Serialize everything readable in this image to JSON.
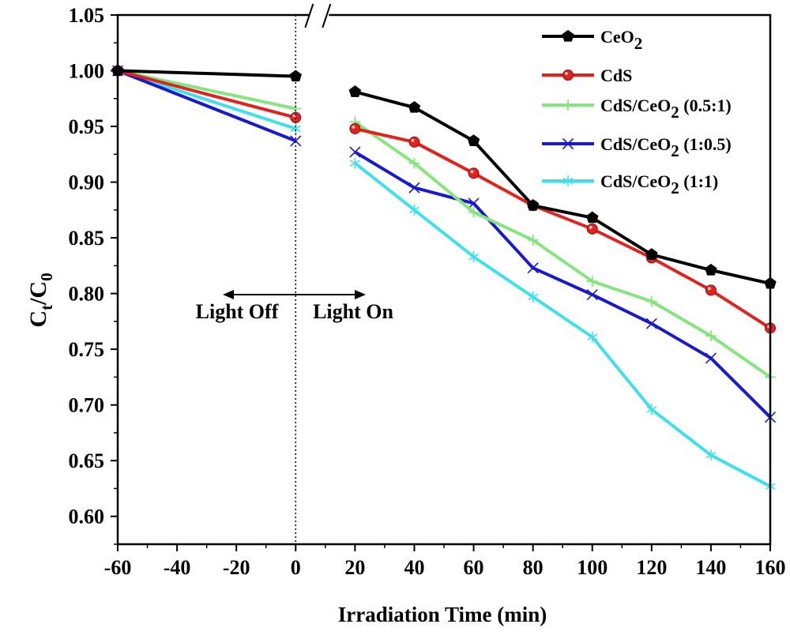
{
  "chart_data": {
    "type": "line",
    "xlabel": "Irradiation Time (min)",
    "ylabel": {
      "base": "C",
      "sub": "t",
      "sep": "/",
      "base2": "C",
      "sub2": "0"
    },
    "xlim": [
      -60,
      160
    ],
    "ylim": [
      0.575,
      1.05
    ],
    "xticks": [
      -60,
      -40,
      -20,
      0,
      20,
      40,
      60,
      80,
      100,
      120,
      140,
      160
    ],
    "yticks": [
      "0.60",
      "0.65",
      "0.70",
      "0.75",
      "0.80",
      "0.85",
      "0.90",
      "0.95",
      "1.00",
      "1.05"
    ],
    "axis_break_at_x": 8,
    "annotations": {
      "left": "Light Off",
      "right": "Light On"
    },
    "series": [
      {
        "name": "CeO2",
        "label_main": "CeO",
        "label_sub": "2",
        "label_tail": "",
        "color": "#000000",
        "marker": "pentagon",
        "segments": [
          [
            [
              -60,
              1.0
            ],
            [
              0,
              0.995
            ]
          ],
          [
            [
              20,
              0.981
            ],
            [
              40,
              0.967
            ],
            [
              60,
              0.937
            ],
            [
              80,
              0.879
            ],
            [
              100,
              0.868
            ],
            [
              120,
              0.835
            ],
            [
              140,
              0.821
            ],
            [
              160,
              0.809
            ]
          ]
        ]
      },
      {
        "name": "CdS",
        "label_main": "CdS",
        "label_sub": "",
        "label_tail": "",
        "color": "#e0231f",
        "marker": "circle",
        "segments": [
          [
            [
              -60,
              1.0
            ],
            [
              0,
              0.958
            ]
          ],
          [
            [
              20,
              0.948
            ],
            [
              40,
              0.936
            ],
            [
              60,
              0.908
            ],
            [
              80,
              0.879
            ],
            [
              100,
              0.858
            ],
            [
              120,
              0.832
            ],
            [
              140,
              0.803
            ],
            [
              160,
              0.769
            ]
          ]
        ]
      },
      {
        "name": "CdS/CeO2 (0.5:1)",
        "label_main": "CdS/CeO",
        "label_sub": "2",
        "label_tail": " (0.5:1)",
        "color": "#86e57f",
        "marker": "plus",
        "segments": [
          [
            [
              -60,
              1.0
            ],
            [
              0,
              0.966
            ]
          ],
          [
            [
              20,
              0.954
            ],
            [
              40,
              0.917
            ],
            [
              60,
              0.873
            ],
            [
              80,
              0.848
            ],
            [
              100,
              0.811
            ],
            [
              120,
              0.793
            ],
            [
              140,
              0.762
            ],
            [
              160,
              0.725
            ]
          ]
        ]
      },
      {
        "name": "CdS/CeO2 (1:0.5)",
        "label_main": "CdS/CeO",
        "label_sub": "2",
        "label_tail": " (1:0.5)",
        "color": "#1a1acd",
        "marker": "x",
        "segments": [
          [
            [
              -60,
              1.0
            ],
            [
              0,
              0.937
            ]
          ],
          [
            [
              20,
              0.927
            ],
            [
              40,
              0.895
            ],
            [
              60,
              0.881
            ],
            [
              80,
              0.823
            ],
            [
              100,
              0.799
            ],
            [
              120,
              0.773
            ],
            [
              140,
              0.742
            ],
            [
              160,
              0.689
            ]
          ]
        ]
      },
      {
        "name": "CdS/CeO2 (1:1)",
        "label_main": "CdS/CeO",
        "label_sub": "2",
        "label_tail": " (1:1)",
        "color": "#3fe0ec",
        "marker": "asterisk",
        "segments": [
          [
            [
              -60,
              1.0
            ],
            [
              0,
              0.948
            ]
          ],
          [
            [
              20,
              0.917
            ],
            [
              40,
              0.875
            ],
            [
              60,
              0.833
            ],
            [
              80,
              0.797
            ],
            [
              100,
              0.761
            ],
            [
              120,
              0.696
            ],
            [
              140,
              0.655
            ],
            [
              160,
              0.627
            ]
          ]
        ]
      }
    ],
    "grid": false,
    "legend": "top-right"
  }
}
